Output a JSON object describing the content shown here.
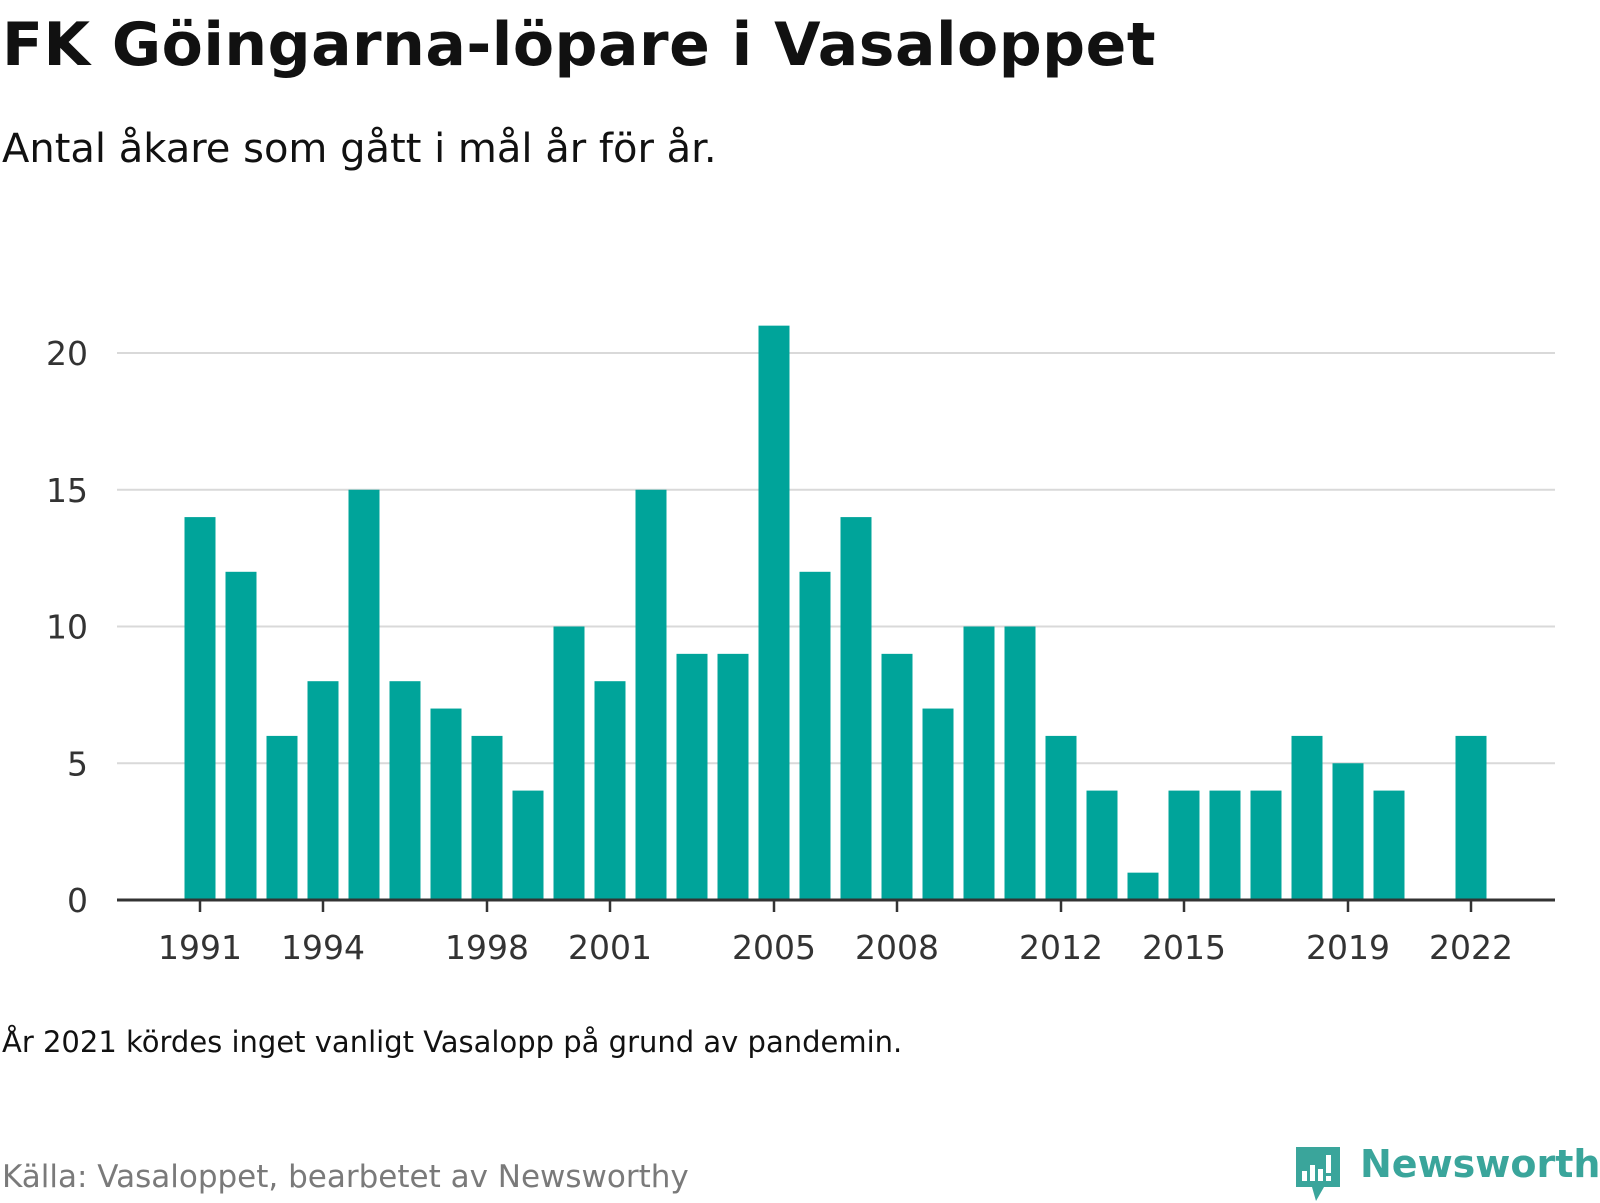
{
  "title": "FK Göingarna-löpare i Vasaloppet",
  "subtitle": "Antal åkare som gått i mål år för år.",
  "note": "År 2021 kördes inget vanligt Vasalopp på grund av pandemin.",
  "source": "Källa: Vasaloppet, bearbetet av Newsworthy",
  "brand": {
    "name": "Newsworthy",
    "icon": "newsworthy-logo-icon",
    "color": "#3aa59b"
  },
  "chart_data": {
    "type": "bar",
    "bar_color": "#00a49a",
    "grid": true,
    "xlim": [
      1989,
      2024
    ],
    "ylim": [
      0,
      21
    ],
    "y_ticks": [
      0,
      5,
      10,
      15,
      20
    ],
    "x_tick_labels": [
      "1991",
      "1994",
      "1998",
      "2001",
      "2005",
      "2008",
      "2012",
      "2015",
      "2019",
      "2022"
    ],
    "x": [
      1991,
      1992,
      1993,
      1994,
      1995,
      1996,
      1997,
      1998,
      1999,
      2000,
      2001,
      2002,
      2003,
      2004,
      2005,
      2006,
      2007,
      2008,
      2009,
      2010,
      2011,
      2012,
      2013,
      2014,
      2015,
      2016,
      2017,
      2018,
      2019,
      2020,
      2022
    ],
    "values": [
      14,
      12,
      6,
      8,
      15,
      8,
      7,
      6,
      4,
      10,
      8,
      15,
      9,
      9,
      21,
      12,
      14,
      9,
      7,
      10,
      10,
      6,
      4,
      1,
      4,
      4,
      4,
      6,
      5,
      4,
      6
    ]
  }
}
